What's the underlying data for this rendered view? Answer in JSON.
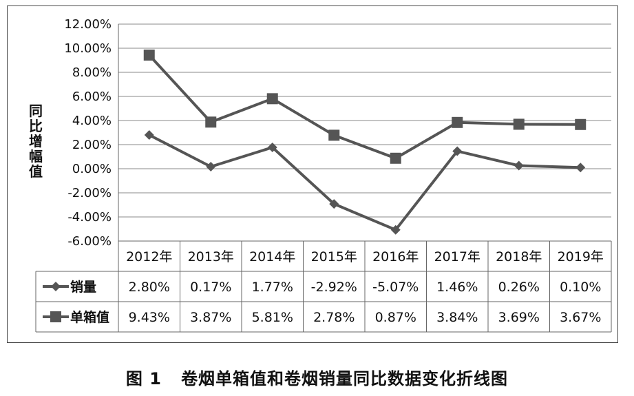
{
  "caption": {
    "number": "图 1",
    "text": "卷烟单箱值和卷烟销量同比数据变化折线图"
  },
  "chart_data": {
    "type": "line",
    "title": "",
    "xlabel": "",
    "ylabel": "同比增幅值",
    "categories": [
      "2012年",
      "2013年",
      "2014年",
      "2015年",
      "2016年",
      "2017年",
      "2018年",
      "2019年"
    ],
    "ylim": [
      -6,
      12
    ],
    "ytick_step": 2,
    "ytick_labels": [
      "12.00%",
      "10.00%",
      "8.00%",
      "6.00%",
      "4.00%",
      "2.00%",
      "0.00%",
      "-2.00%",
      "-4.00%",
      "-6.00%"
    ],
    "grid": true,
    "legend_placement": "data table rows below the x-axis",
    "series": [
      {
        "name": "销量",
        "marker": "diamond",
        "color": "#555555",
        "values": [
          2.8,
          0.17,
          1.77,
          -2.92,
          -5.07,
          1.46,
          0.26,
          0.1
        ],
        "labels": [
          "2.80%",
          "0.17%",
          "1.77%",
          "-2.92%",
          "-5.07%",
          "1.46%",
          "0.26%",
          "0.10%"
        ]
      },
      {
        "name": "单箱值",
        "marker": "square",
        "color": "#555555",
        "values": [
          9.43,
          3.87,
          5.81,
          2.78,
          0.87,
          3.84,
          3.69,
          3.67
        ],
        "labels": [
          "9.43%",
          "3.87%",
          "5.81%",
          "2.78%",
          "0.87%",
          "3.84%",
          "3.69%",
          "3.67%"
        ]
      }
    ]
  }
}
